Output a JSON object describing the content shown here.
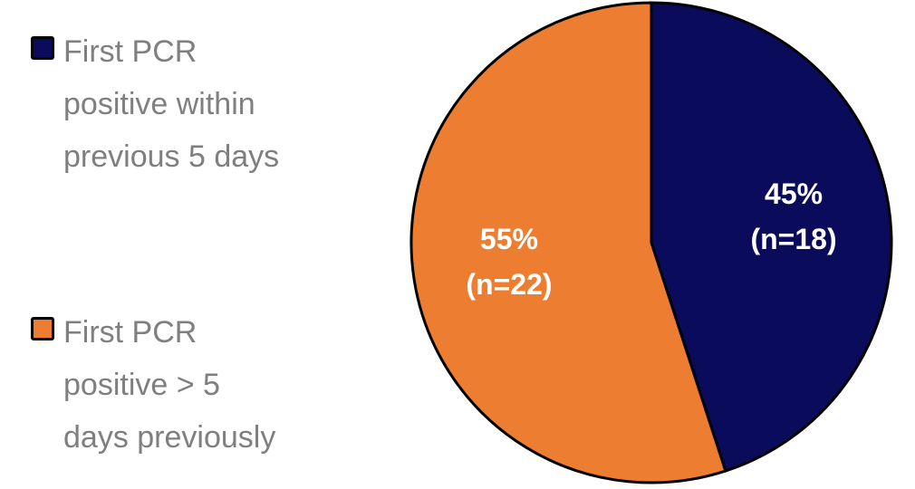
{
  "chart_data": {
    "type": "pie",
    "categories": [
      "First PCR positive within previous 5 days",
      "First PCR positive > 5 days previously"
    ],
    "values": [
      45,
      55
    ],
    "counts": [
      18,
      22
    ],
    "slice_labels": [
      [
        "45%",
        "(n=18)"
      ],
      [
        "55%",
        "(n=22)"
      ]
    ],
    "colors": [
      "#0b0b5c",
      "#ed7d31"
    ],
    "legend_position": "left",
    "legend": [
      {
        "label": "First PCR\npositive within\nprevious 5 days",
        "color": "#0b0b5c"
      },
      {
        "label": "First PCR\npositive > 5\ndays previously",
        "color": "#ed7d31"
      }
    ]
  }
}
